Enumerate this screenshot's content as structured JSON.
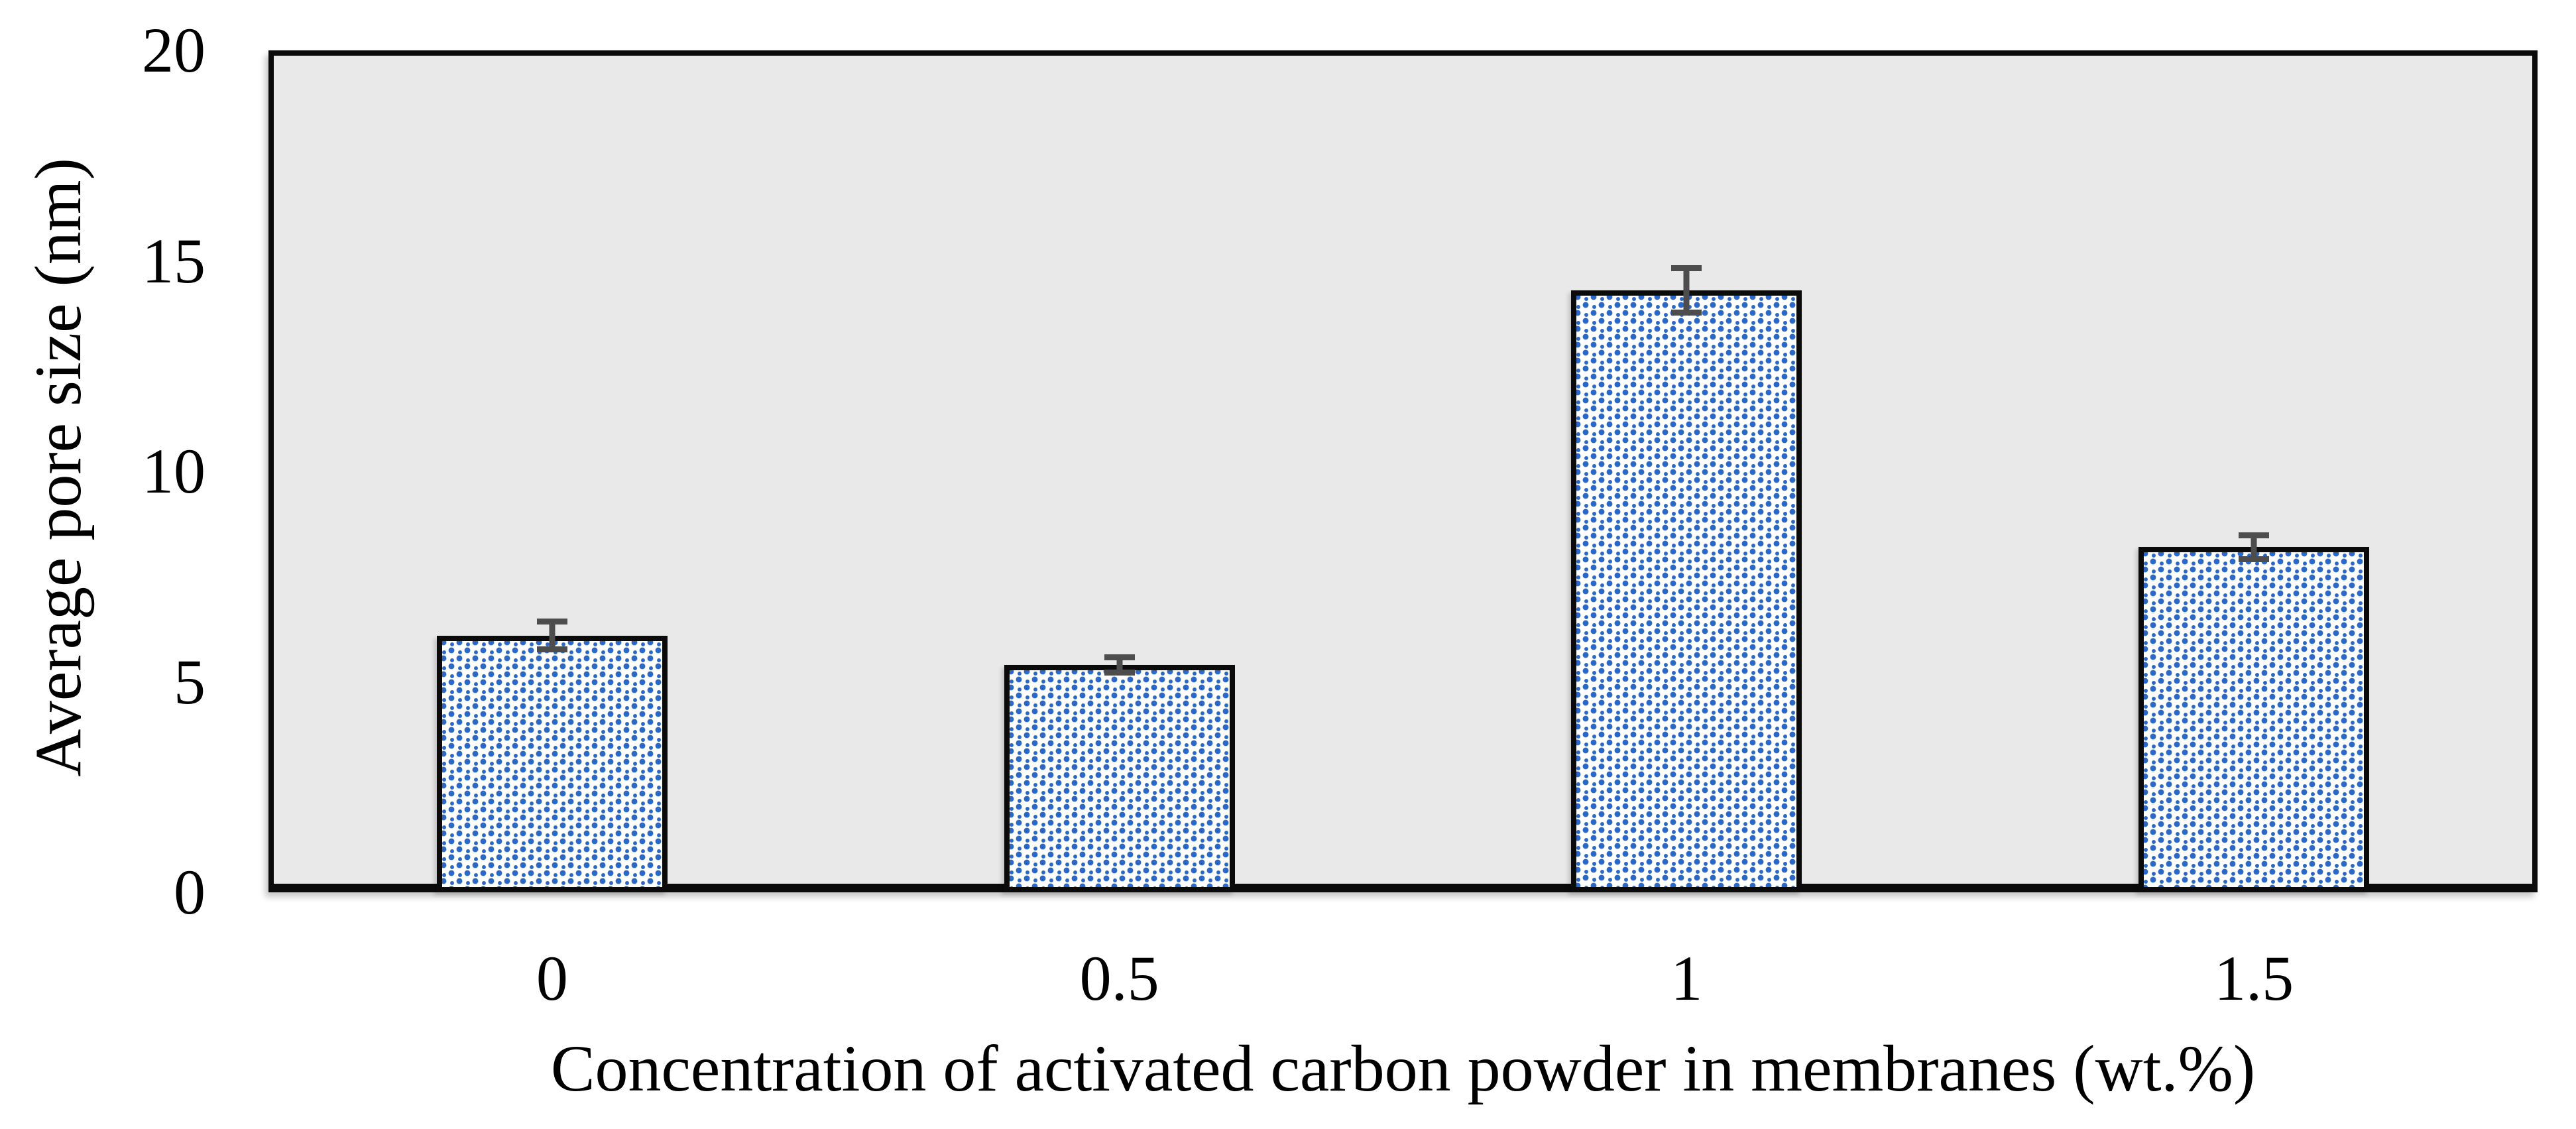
{
  "chart_data": {
    "type": "bar",
    "title": "",
    "xlabel": "Concentration of activated carbon powder in membranes (wt.%)",
    "ylabel": "Average pore size (nm)",
    "categories": [
      "0",
      "0.5",
      "1",
      "1.5"
    ],
    "series": [
      {
        "name": "Average pore size",
        "values": [
          6.1,
          5.4,
          14.3,
          8.2
        ],
        "error_bars": [
          0.4,
          0.25,
          0.6,
          0.35
        ]
      }
    ],
    "ylim": [
      0,
      20
    ],
    "yticks": [
      "0",
      "5",
      "10",
      "15",
      "20"
    ],
    "grid": false,
    "legend_position": "none",
    "colors": {
      "plot_background": "#e9e9e9",
      "page_background": "#ffffff",
      "bar_fill": "#ffffff",
      "bar_pattern_dots": "#2b67c5",
      "bar_border": "#0b0b0b",
      "error_bar": "#4d4d4d",
      "text": "#000000"
    }
  }
}
